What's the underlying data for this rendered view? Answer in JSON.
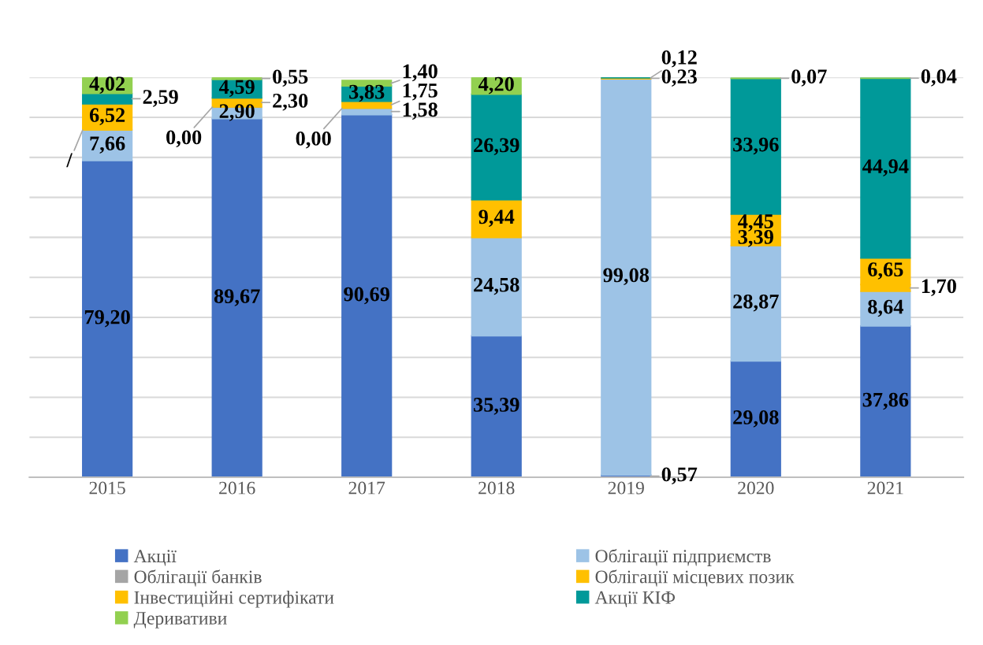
{
  "chart_data": {
    "type": "bar",
    "stacked": true,
    "categories": [
      "2015",
      "2016",
      "2017",
      "2018",
      "2019",
      "2020",
      "2021"
    ],
    "ylim": [
      0,
      100
    ],
    "yticks": [
      {
        "value": 0,
        "label": null
      },
      {
        "value": 10,
        "label": null
      },
      {
        "value": 20,
        "label": null
      },
      {
        "value": 30,
        "label": null
      },
      {
        "value": 40,
        "label": null
      },
      {
        "value": 50,
        "label": null
      },
      {
        "value": 60,
        "label": null
      },
      {
        "value": 70,
        "label": null
      },
      {
        "value": 80,
        "label": null
      },
      {
        "value": 90,
        "label": null
      },
      {
        "value": 100,
        "label": null
      }
    ],
    "tick_labels": "x",
    "grid": "y",
    "legend": "bottom",
    "series": [
      {
        "name": "Акції",
        "color": "#4472c4",
        "values": [
          79.2,
          89.67,
          90.69,
          35.39,
          0.57,
          29.08,
          37.86
        ],
        "value_labels": [
          "79,20",
          "89,67",
          "90,69",
          "35,39",
          "0,57",
          "29,08",
          "37,86"
        ]
      },
      {
        "name": "Облігації підприємств",
        "color": "#9dc3e6",
        "values": [
          7.66,
          2.9,
          1.58,
          24.58,
          99.08,
          28.87,
          8.64
        ],
        "value_labels": [
          "7,66",
          "2,90",
          "1,58",
          "24,58",
          "99,08",
          "28,87",
          "8,64"
        ]
      },
      {
        "name": "Облігації банків",
        "color": "#a5a5a5",
        "values": [
          null,
          0.0,
          0.0,
          null,
          null,
          null,
          null
        ],
        "value_labels": [
          null,
          "0,00",
          "0,00",
          null,
          null,
          null,
          null
        ]
      },
      {
        "name": "Облігації місцевих позик",
        "color": "#ffc000",
        "values": [
          0,
          null,
          null,
          null,
          null,
          3.39,
          1.7
        ],
        "value_labels": [
          "/",
          null,
          null,
          null,
          null,
          "3,39",
          "1,70"
        ]
      },
      {
        "name": "Інвестиційні сертифікати",
        "color": "#ffc000",
        "values": [
          6.52,
          2.3,
          1.75,
          9.44,
          0.23,
          4.45,
          6.65
        ],
        "value_labels": [
          "6,52",
          "2,30",
          "1,75",
          "9,44",
          "0,23",
          "4,45",
          "6,65"
        ]
      },
      {
        "name": "Акції КІФ",
        "color": "#009999",
        "values": [
          2.59,
          4.59,
          3.83,
          26.39,
          0.12,
          33.96,
          44.94
        ],
        "value_labels": [
          "2,59",
          "4,59",
          "3,83",
          "26,39",
          "0,12",
          "33,96",
          "44,94"
        ]
      },
      {
        "name": "Деривативи",
        "color": "#92d050",
        "values": [
          4.02,
          0.55,
          1.4,
          4.2,
          null,
          0.07,
          0.04
        ],
        "value_labels": [
          "4,02",
          "0,55",
          "1,40",
          "4,20",
          null,
          "0,07",
          "0,04"
        ]
      }
    ]
  }
}
